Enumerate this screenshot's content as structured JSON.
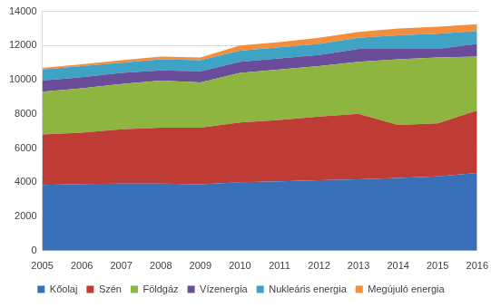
{
  "chart_data": {
    "type": "area",
    "stacked": true,
    "grid": true,
    "legend": "bottom",
    "categories": [
      "2005",
      "2006",
      "2007",
      "2008",
      "2009",
      "2010",
      "2011",
      "2012",
      "2013",
      "2014",
      "2015",
      "2016"
    ],
    "ylim": [
      0,
      14000
    ],
    "yticks": [
      0,
      2000,
      4000,
      6000,
      8000,
      10000,
      12000,
      14000
    ],
    "series": [
      {
        "name": "Kőolaj",
        "color": "#3a70b8",
        "values": [
          3850,
          3900,
          3930,
          3920,
          3880,
          4000,
          4050,
          4120,
          4180,
          4250,
          4350,
          4550
        ]
      },
      {
        "name": "Szén",
        "color": "#be3b36",
        "values": [
          2950,
          3000,
          3170,
          3280,
          3320,
          3500,
          3600,
          3730,
          3820,
          3100,
          3100,
          3650
        ]
      },
      {
        "name": "Földgáz",
        "color": "#8db53f",
        "values": [
          2500,
          2600,
          2650,
          2750,
          2650,
          2900,
          2950,
          2950,
          3050,
          3850,
          3850,
          3150
        ]
      },
      {
        "name": "Vízenergia",
        "color": "#6a4d9a",
        "values": [
          650,
          650,
          650,
          600,
          650,
          650,
          650,
          650,
          750,
          600,
          500,
          750
        ]
      },
      {
        "name": "Nukleáris energia",
        "color": "#3ea3c4",
        "values": [
          650,
          650,
          600,
          650,
          650,
          650,
          650,
          650,
          650,
          800,
          900,
          750
        ]
      },
      {
        "name": "Megújuló energia",
        "color": "#f48d3c",
        "values": [
          100,
          100,
          150,
          150,
          150,
          300,
          300,
          350,
          350,
          400,
          400,
          400
        ]
      }
    ]
  }
}
